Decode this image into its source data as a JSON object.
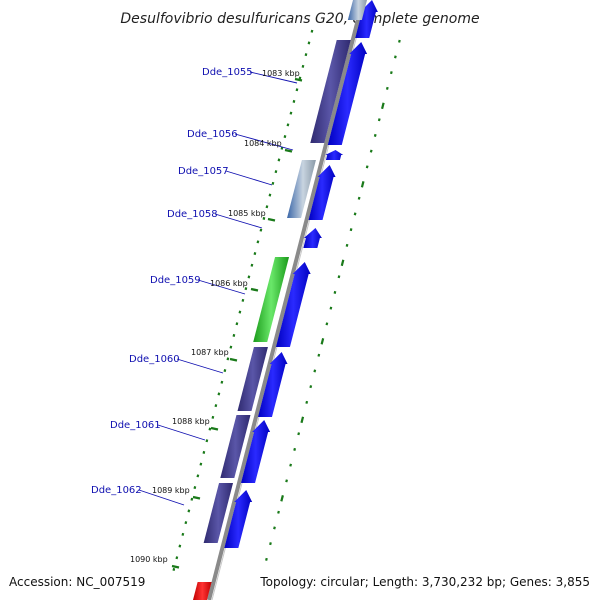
{
  "title": "Desulfovibrio desulfuricans G20, complete genome",
  "footer": {
    "accession": "Accession: NC_007519",
    "topology": "Topology: circular; Length: 3,730,232 bp; Genes: 3,855"
  },
  "colors": {
    "backbone": "#8a8a8a",
    "forward_gene": "#0a0af0",
    "purple_feature": "#3e3a8c",
    "green_feature": "#2ec42e",
    "steel_feature": "#4a78b8",
    "red_feature": "#ee1111",
    "tick": "#1a7a1a",
    "label_line": "#1010b0"
  },
  "gene_labels": [
    "Dde_1055",
    "Dde_1056",
    "Dde_1057",
    "Dde_1058",
    "Dde_1059",
    "Dde_1060",
    "Dde_1061",
    "Dde_1062"
  ],
  "kbp_labels": [
    "1083 kbp",
    "1084 kbp",
    "1085 kbp",
    "1086 kbp",
    "1087 kbp",
    "1088 kbp",
    "1089 kbp",
    "1090 kbp"
  ]
}
